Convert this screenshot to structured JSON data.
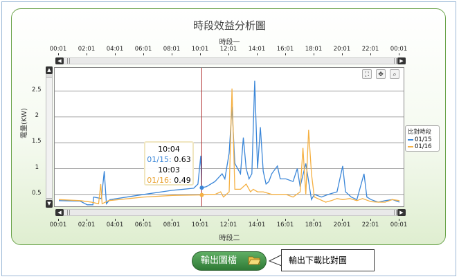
{
  "title": "時段效益分析圖",
  "top_axis_title": "時段一",
  "bottom_axis_title": "時段二",
  "y_axis_title": "電量(KW)",
  "time_ticks": [
    "00:01",
    "02:01",
    "04:01",
    "06:01",
    "08:01",
    "10:01",
    "12:01",
    "14:01",
    "16:01",
    "18:01",
    "20:01",
    "22:01",
    "00:01"
  ],
  "y_ticks": [
    "0.5",
    "1",
    "1.5",
    "2",
    "2.5"
  ],
  "legend": {
    "title": "比對時段",
    "items": [
      "01/15",
      "01/16"
    ]
  },
  "tooltip": {
    "time1": "10:04",
    "label1": "01/15:",
    "value1": "0.63",
    "time2": "10:03",
    "label2": "01/16:",
    "value2": "0.49"
  },
  "colors": {
    "series1": "#3a86d8",
    "series2": "#f5b042",
    "crosshair": "#b03030",
    "grid": "#999999"
  },
  "tools": [
    "fit-icon",
    "move-icon",
    "zoom-icon"
  ],
  "export_button": {
    "label": "輸出圖檔"
  },
  "callout": {
    "text": "輸出下載比對圖"
  },
  "chart_data": {
    "type": "line",
    "title": "時段效益分析圖",
    "xlabel": "時段一",
    "ylabel": "電量(KW)",
    "ylim": [
      0.27,
      2.95
    ],
    "x_range": [
      "00:01",
      "00:01"
    ],
    "grid": true,
    "legend_position": "right",
    "series": [
      {
        "name": "01/15",
        "color": "#3a86d8",
        "points": [
          [
            0,
            0.38
          ],
          [
            1.5,
            0.37
          ],
          [
            2.0,
            0.3
          ],
          [
            2.4,
            0.3
          ],
          [
            2.45,
            0.45
          ],
          [
            3.0,
            0.42
          ],
          [
            3.2,
            0.95
          ],
          [
            3.35,
            0.32
          ],
          [
            3.6,
            0.4
          ],
          [
            6.0,
            0.5
          ],
          [
            8.0,
            0.58
          ],
          [
            9.5,
            0.62
          ],
          [
            9.8,
            0.7
          ],
          [
            10.0,
            1.25
          ],
          [
            10.07,
            0.63
          ],
          [
            10.4,
            0.65
          ],
          [
            11.0,
            0.75
          ],
          [
            11.5,
            0.9
          ],
          [
            11.7,
            0.8
          ],
          [
            12.0,
            1.3
          ],
          [
            12.2,
            2.2
          ],
          [
            12.4,
            1.1
          ],
          [
            12.8,
            0.9
          ],
          [
            13.0,
            1.6
          ],
          [
            13.2,
            1.0
          ],
          [
            13.4,
            0.8
          ],
          [
            13.6,
            0.9
          ],
          [
            13.8,
            2.7
          ],
          [
            14.0,
            1.0
          ],
          [
            14.2,
            1.8
          ],
          [
            14.4,
            0.95
          ],
          [
            14.6,
            0.7
          ],
          [
            14.8,
            0.75
          ],
          [
            15.0,
            0.9
          ],
          [
            15.4,
            1.05
          ],
          [
            15.6,
            0.8
          ],
          [
            16.0,
            0.8
          ],
          [
            16.5,
            0.75
          ],
          [
            16.8,
            1.0
          ],
          [
            17.0,
            0.65
          ],
          [
            17.4,
            1.1
          ],
          [
            17.6,
            0.75
          ],
          [
            17.8,
            0.4
          ],
          [
            18.0,
            0.5
          ],
          [
            18.5,
            0.45
          ],
          [
            19.0,
            0.5
          ],
          [
            19.6,
            0.55
          ],
          [
            20.0,
            1.05
          ],
          [
            20.2,
            0.55
          ],
          [
            20.6,
            0.45
          ],
          [
            21.0,
            0.4
          ],
          [
            21.5,
            0.9
          ],
          [
            21.7,
            0.45
          ],
          [
            22.0,
            0.4
          ],
          [
            22.5,
            0.35
          ],
          [
            23.0,
            0.38
          ],
          [
            23.5,
            0.4
          ],
          [
            24.0,
            0.35
          ]
        ]
      },
      {
        "name": "01/16",
        "color": "#f5b042",
        "points": [
          [
            0,
            0.4
          ],
          [
            1.5,
            0.38
          ],
          [
            2.3,
            0.35
          ],
          [
            2.8,
            0.32
          ],
          [
            2.95,
            0.7
          ],
          [
            3.05,
            0.32
          ],
          [
            3.5,
            0.38
          ],
          [
            6.0,
            0.45
          ],
          [
            8.0,
            0.48
          ],
          [
            10.0,
            0.49
          ],
          [
            10.5,
            0.5
          ],
          [
            11.0,
            0.5
          ],
          [
            11.4,
            0.55
          ],
          [
            11.6,
            0.45
          ],
          [
            12.0,
            0.55
          ],
          [
            12.2,
            2.55
          ],
          [
            12.4,
            0.6
          ],
          [
            12.8,
            0.6
          ],
          [
            13.2,
            0.7
          ],
          [
            13.5,
            0.55
          ],
          [
            13.7,
            0.6
          ],
          [
            14.0,
            0.55
          ],
          [
            14.4,
            0.55
          ],
          [
            15.0,
            0.5
          ],
          [
            15.6,
            0.5
          ],
          [
            16.0,
            0.5
          ],
          [
            16.5,
            0.45
          ],
          [
            17.0,
            0.55
          ],
          [
            17.2,
            1.4
          ],
          [
            17.4,
            0.5
          ],
          [
            17.6,
            1.75
          ],
          [
            17.8,
            0.9
          ],
          [
            18.0,
            0.45
          ],
          [
            18.4,
            0.4
          ],
          [
            18.8,
            0.35
          ],
          [
            19.2,
            0.38
          ],
          [
            19.6,
            0.42
          ],
          [
            20.0,
            0.4
          ],
          [
            20.5,
            0.42
          ],
          [
            21.0,
            0.38
          ],
          [
            21.4,
            0.42
          ],
          [
            22.0,
            0.36
          ],
          [
            22.5,
            0.35
          ],
          [
            23.0,
            0.35
          ],
          [
            23.5,
            0.4
          ],
          [
            24.0,
            0.38
          ]
        ]
      }
    ]
  }
}
